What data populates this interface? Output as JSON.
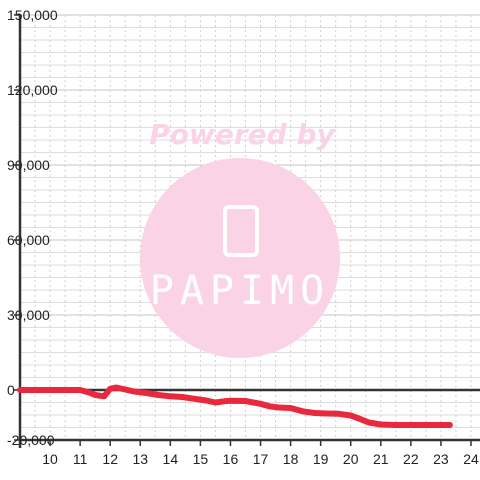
{
  "chart_data": {
    "type": "line",
    "title": "",
    "xlabel": "",
    "ylabel": "",
    "xlim": [
      9,
      24.3
    ],
    "ylim": [
      -20000,
      150000
    ],
    "x_ticks": [
      "10",
      "11",
      "12",
      "13",
      "14",
      "15",
      "16",
      "17",
      "18",
      "19",
      "20",
      "21",
      "22",
      "23",
      "24"
    ],
    "y_ticks": [
      "150,000",
      "120,000",
      "90,000",
      "60,000",
      "30,000",
      "0",
      "-20,000"
    ],
    "grid": true,
    "series": [
      {
        "color": "#e8283c",
        "x": [
          9,
          10,
          11,
          11.3,
          11.5,
          11.8,
          12.0,
          12.2,
          12.5,
          12.8,
          13.2,
          13.6,
          14.0,
          14.4,
          14.8,
          15.2,
          15.5,
          15.8,
          16.0,
          16.5,
          17.0,
          17.3,
          17.6,
          18.0,
          18.4,
          18.8,
          19.2,
          19.6,
          20.0,
          20.3,
          20.6,
          21.0,
          21.5,
          22.0,
          22.5,
          23.0,
          23.3
        ],
        "y": [
          0,
          0,
          0,
          -1000,
          -2000,
          -2500,
          500,
          1000,
          200,
          -600,
          -1200,
          -2000,
          -2500,
          -2800,
          -3500,
          -4200,
          -5000,
          -4500,
          -4300,
          -4400,
          -5500,
          -6500,
          -7000,
          -7200,
          -8500,
          -9200,
          -9400,
          -9500,
          -10200,
          -11500,
          -13000,
          -13800,
          -14000,
          -14000,
          -14000,
          -14000,
          -14000
        ]
      }
    ],
    "watermark": {
      "text": "Powered by",
      "logo": "PAPIMO"
    }
  }
}
